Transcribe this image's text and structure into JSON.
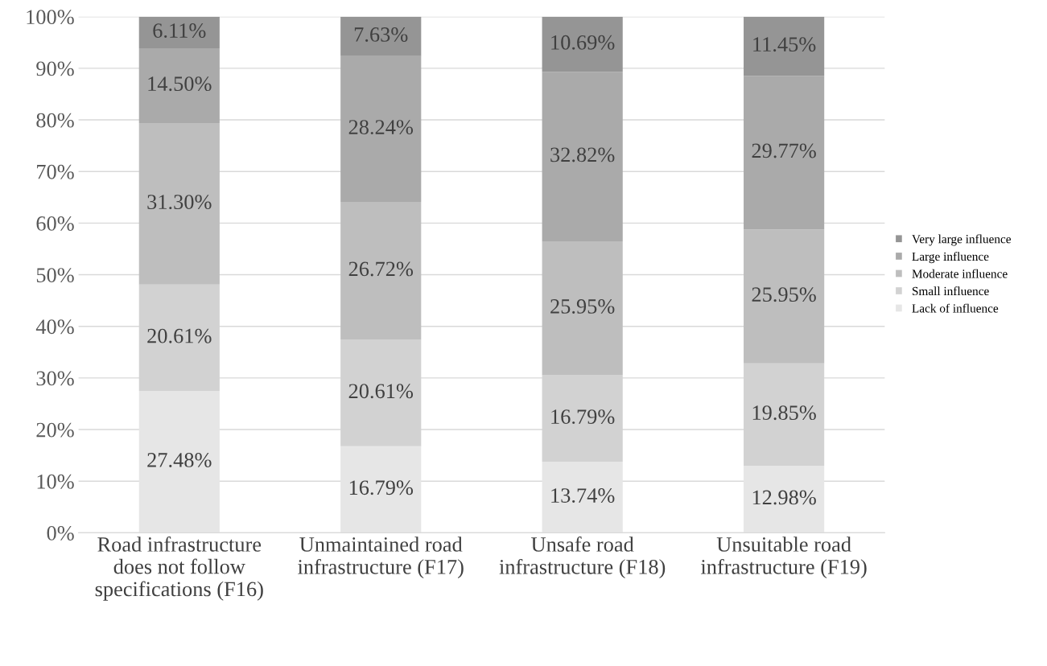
{
  "chart_data": {
    "type": "bar",
    "stacked": true,
    "categories": [
      "Road infrastructure does not follow specifications (F16)",
      "Unmaintained road infrastructure (F17)",
      "Unsafe road infrastructure (F18)",
      "Unsuitable road infrastructure (F19)"
    ],
    "series": [
      {
        "name": "Lack of influence",
        "color": "#e6e6e6",
        "values": [
          27.48,
          16.79,
          13.74,
          12.98
        ],
        "value_labels": [
          "27.48%",
          "16.79%",
          "13.74%",
          "12.98%"
        ]
      },
      {
        "name": "Small influence",
        "color": "#d2d2d2",
        "values": [
          20.61,
          20.61,
          16.79,
          19.85
        ],
        "value_labels": [
          "20.61%",
          "20.61%",
          "16.79%",
          "19.85%"
        ]
      },
      {
        "name": "Moderate influence",
        "color": "#bebebe",
        "values": [
          31.3,
          26.72,
          25.95,
          25.95
        ],
        "value_labels": [
          "31.30%",
          "26.72%",
          "25.95%",
          "25.95%"
        ]
      },
      {
        "name": "Large influence",
        "color": "#aaaaaa",
        "values": [
          14.5,
          28.24,
          32.82,
          29.77
        ],
        "value_labels": [
          "14.50%",
          "28.24%",
          "32.82%",
          "29.77%"
        ]
      },
      {
        "name": "Very large influence",
        "color": "#959595",
        "values": [
          6.11,
          7.63,
          10.69,
          11.45
        ],
        "value_labels": [
          "6.11%",
          "7.63%",
          "10.69%",
          "11.45%"
        ]
      }
    ],
    "ylim": [
      0,
      100
    ],
    "yticks": [
      {
        "value": 0,
        "label": "0%"
      },
      {
        "value": 10,
        "label": "10%"
      },
      {
        "value": 20,
        "label": "20%"
      },
      {
        "value": 30,
        "label": "30%"
      },
      {
        "value": 40,
        "label": "40%"
      },
      {
        "value": 50,
        "label": "50%"
      },
      {
        "value": 60,
        "label": "60%"
      },
      {
        "value": 70,
        "label": "70%"
      },
      {
        "value": 80,
        "label": "80%"
      },
      {
        "value": 90,
        "label": "90%"
      },
      {
        "value": 100,
        "label": "100%"
      }
    ],
    "grid": "y",
    "legend": "right"
  }
}
